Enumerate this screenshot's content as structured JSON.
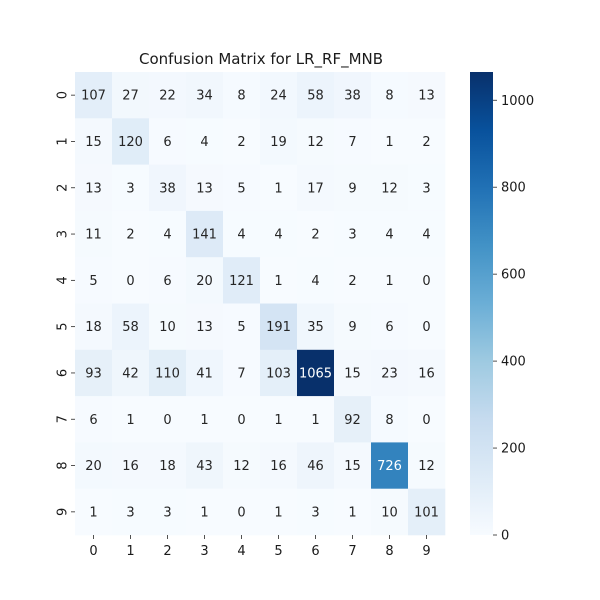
{
  "chart_data": {
    "type": "heatmap",
    "title": "Confusion Matrix for LR_RF_MNB",
    "xlabel": "",
    "ylabel": "",
    "x_categories": [
      "0",
      "1",
      "2",
      "3",
      "4",
      "5",
      "6",
      "7",
      "8",
      "9"
    ],
    "y_categories": [
      "0",
      "1",
      "2",
      "3",
      "4",
      "5",
      "6",
      "7",
      "8",
      "9"
    ],
    "values": [
      [
        107,
        27,
        22,
        34,
        8,
        24,
        58,
        38,
        8,
        13
      ],
      [
        15,
        120,
        6,
        4,
        2,
        19,
        12,
        7,
        1,
        2
      ],
      [
        13,
        3,
        38,
        13,
        5,
        1,
        17,
        9,
        12,
        3
      ],
      [
        11,
        2,
        4,
        141,
        4,
        4,
        2,
        3,
        4,
        4
      ],
      [
        5,
        0,
        6,
        20,
        121,
        1,
        4,
        2,
        1,
        0
      ],
      [
        18,
        58,
        10,
        13,
        5,
        191,
        35,
        9,
        6,
        0
      ],
      [
        93,
        42,
        110,
        41,
        7,
        103,
        1065,
        15,
        23,
        16
      ],
      [
        6,
        1,
        0,
        1,
        0,
        1,
        1,
        92,
        8,
        0
      ],
      [
        20,
        16,
        18,
        43,
        12,
        16,
        46,
        15,
        726,
        12
      ],
      [
        1,
        3,
        3,
        1,
        0,
        1,
        3,
        1,
        10,
        101
      ]
    ],
    "colorbar": {
      "colormap": "Blues",
      "range": [
        0,
        1065
      ],
      "ticks": [
        0,
        200,
        400,
        600,
        800,
        1000
      ]
    },
    "grid": false
  }
}
